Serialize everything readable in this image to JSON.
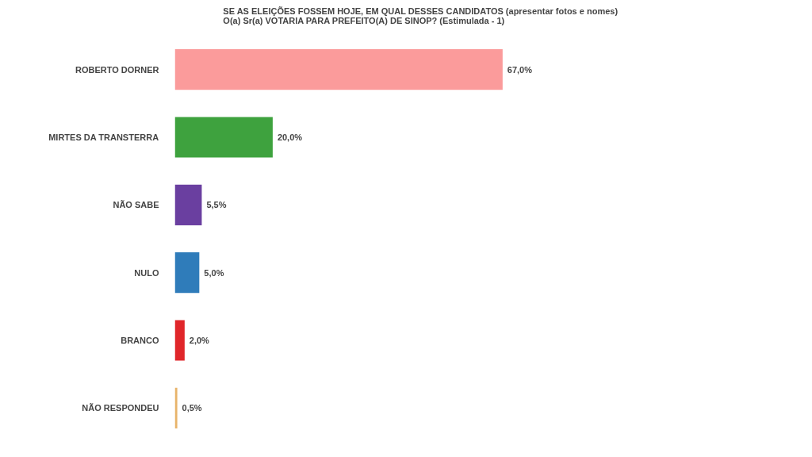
{
  "chart_data": {
    "type": "bar",
    "orientation": "horizontal",
    "title": "SE AS ELEIÇÕES FOSSEM HOJE, EM QUAL DESSES CANDIDATOS (apresentar fotos e nomes) O(a) Sr(a) VOTARIA PARA PREFEITO(A) DE SINOP? (Estimulada - 1)",
    "categories": [
      "ROBERTO DORNER",
      "MIRTES DA TRANSTERRA",
      "NÃO SABE",
      "NULO",
      "BRANCO",
      "NÃO RESPONDEU"
    ],
    "values": [
      67,
      20,
      5.5,
      5,
      2,
      0.5
    ],
    "colors": [
      "#fb9b9b",
      "#3ea23e",
      "#6a3fa0",
      "#2f7cba",
      "#e0262a",
      "#e8b46a"
    ],
    "value_labels": [
      "67,0%",
      "20,0%",
      "5,5%",
      "5,0%",
      "2,0%",
      "0,5%"
    ],
    "tick_labels": "y",
    "grid": false
  }
}
